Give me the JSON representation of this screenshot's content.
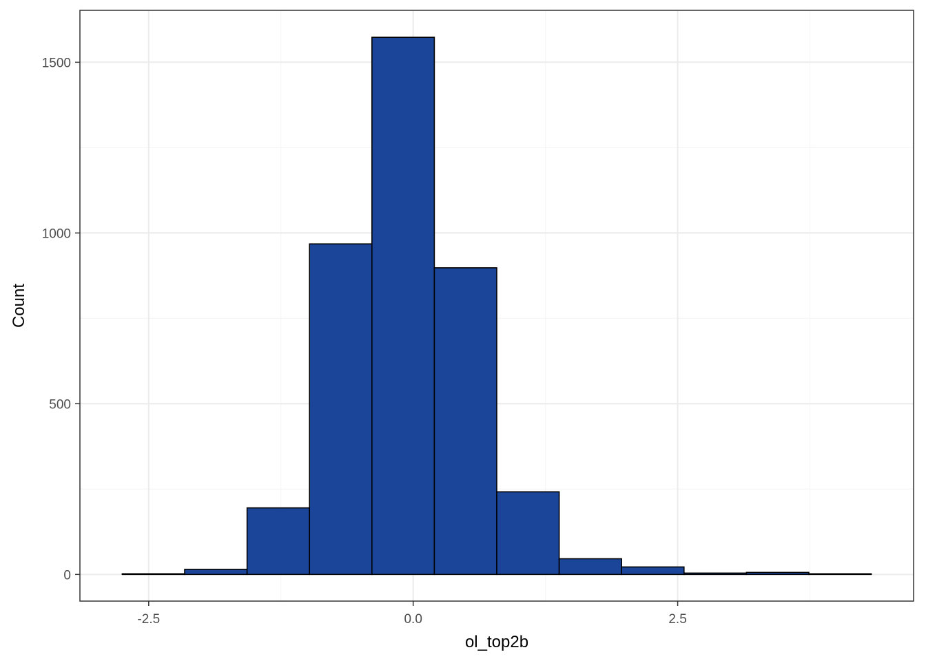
{
  "chart_data": {
    "type": "bar",
    "subtype": "histogram",
    "xlabel": "ol_top2b",
    "ylabel": "Count",
    "title": "",
    "bin_width": 0.59,
    "bins": [
      {
        "x0": -2.75,
        "x1": -2.16,
        "count": 2
      },
      {
        "x0": -2.16,
        "x1": -1.57,
        "count": 15
      },
      {
        "x0": -1.57,
        "x1": -0.98,
        "count": 195
      },
      {
        "x0": -0.98,
        "x1": -0.39,
        "count": 968
      },
      {
        "x0": -0.39,
        "x1": 0.2,
        "count": 1573
      },
      {
        "x0": 0.2,
        "x1": 0.79,
        "count": 898
      },
      {
        "x0": 0.79,
        "x1": 1.38,
        "count": 242
      },
      {
        "x0": 1.38,
        "x1": 1.97,
        "count": 46
      },
      {
        "x0": 1.97,
        "x1": 2.56,
        "count": 22
      },
      {
        "x0": 2.56,
        "x1": 3.15,
        "count": 4
      },
      {
        "x0": 3.15,
        "x1": 3.74,
        "count": 6
      },
      {
        "x0": 3.74,
        "x1": 4.33,
        "count": 2
      }
    ],
    "xlim": [
      -3.15,
      4.73
    ],
    "ylim": [
      -78,
      1652
    ],
    "x_ticks": [
      -2.5,
      0.0,
      2.5
    ],
    "x_tick_labels": [
      "-2.5",
      "0.0",
      "2.5"
    ],
    "y_ticks": [
      0,
      500,
      1000,
      1500
    ],
    "y_tick_labels": [
      "0",
      "500",
      "1000",
      "1500"
    ],
    "x_minor_ticks": [
      -1.25,
      1.25,
      3.75
    ],
    "y_minor_ticks": [
      250,
      750,
      1250
    ],
    "grid": true,
    "legend": "none",
    "colors": {
      "bar_fill": "#1a4599",
      "bar_stroke": "#000000",
      "grid_major": "#ebebeb",
      "grid_minor": "#f5f5f5",
      "panel_border": "#333333"
    }
  }
}
